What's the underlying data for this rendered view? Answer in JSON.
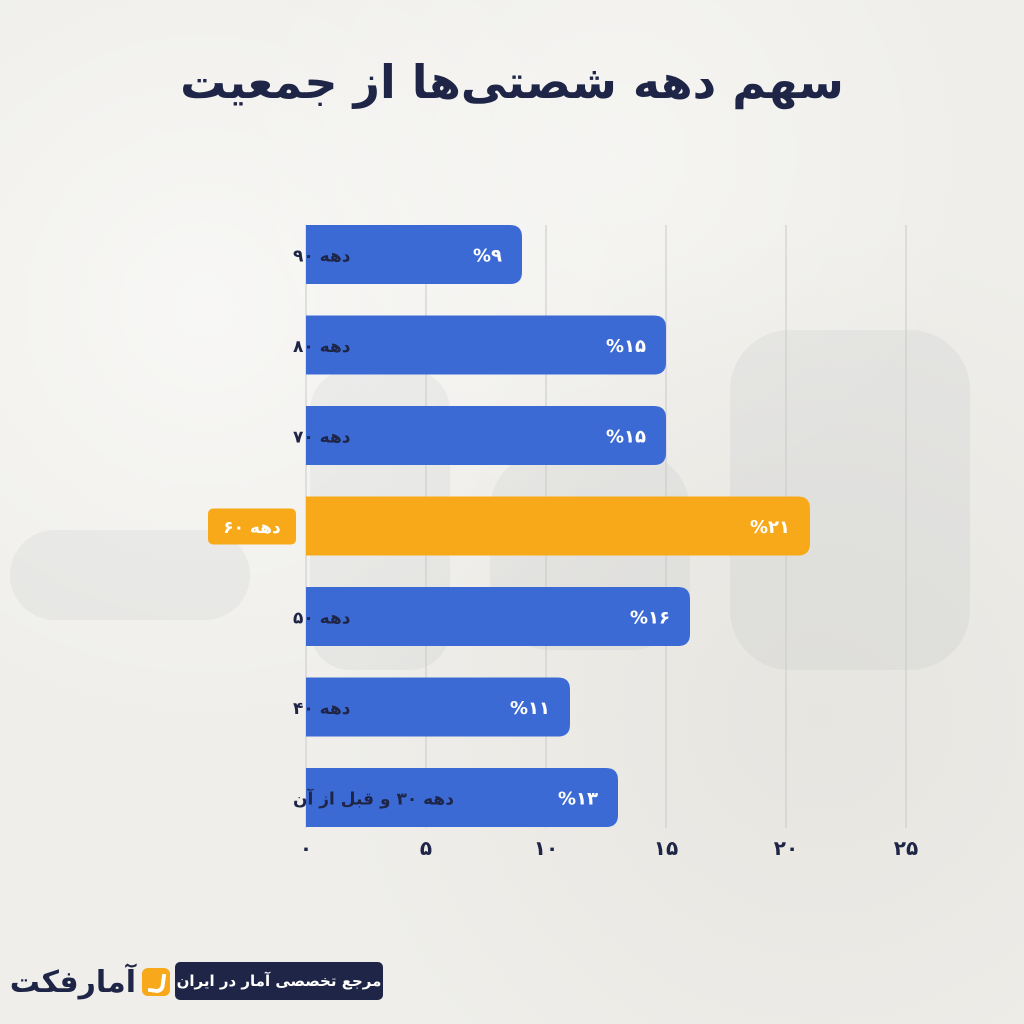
{
  "header": {
    "title": "سهم دهه شصتی‌ها از جمعیت"
  },
  "chart_data": {
    "type": "bar",
    "orientation": "horizontal",
    "title": "سهم دهه شصتی‌ها از جمعیت",
    "categories": [
      "دهه ۹۰",
      "دهه ۸۰",
      "دهه ۷۰",
      "دهه ۶۰",
      "دهه ۵۰",
      "دهه ۴۰",
      "دهه ۳۰ و قبل از آن"
    ],
    "values": [
      9,
      15,
      15,
      21,
      16,
      11,
      13
    ],
    "value_labels": [
      "%۹",
      "%۱۵",
      "%۱۵",
      "%۲۱",
      "%۱۶",
      "%۱۱",
      "%۱۳"
    ],
    "highlight_category": "دهه ۶۰",
    "xlim": [
      0,
      25
    ],
    "x_ticks": [
      0,
      5,
      10,
      15,
      20,
      25
    ],
    "x_tick_labels": [
      "۰",
      "۵",
      "۱۰",
      "۱۵",
      "۲۰",
      "۲۵"
    ],
    "xlabel": "",
    "ylabel": "",
    "grid": "vertical",
    "legend": "none"
  },
  "colors": {
    "bar": "#3c6ad5",
    "highlight": "#f8a91a",
    "title_text": "#1e2546",
    "grid": "#c9c9c9",
    "label_text": "#1e2546",
    "bar_text": "#ffffff"
  },
  "footer": {
    "tagline": "مرجع تخصصی آمار در ایران",
    "brand_name": "آمارفکت",
    "brand_icon": "amarfact-logo-icon"
  }
}
